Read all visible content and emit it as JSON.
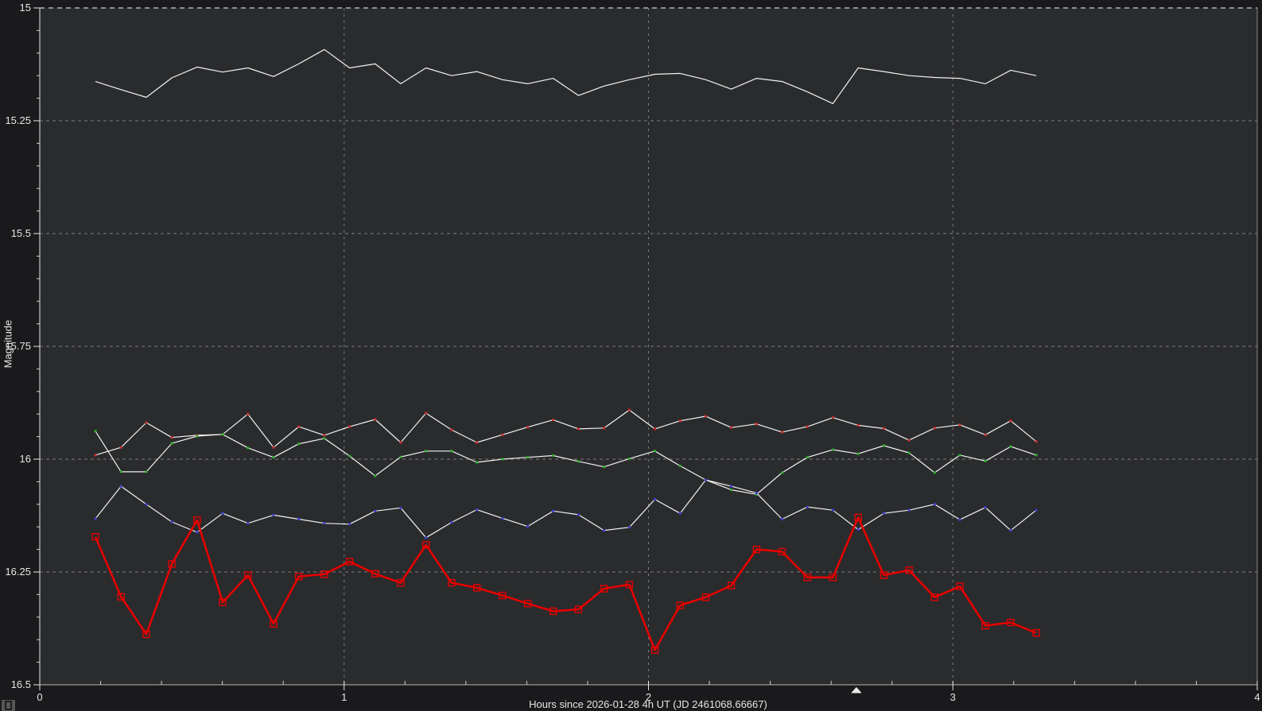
{
  "window": {
    "outer_background": "#1a1a1c",
    "plot_background": "#2a2b2d",
    "axis_text_color": "#e6e6e6",
    "gridline_color": "#7d7d7d",
    "top_gridline_color": "#fafafa",
    "frame_left_color": "#e8e8e8",
    "frame_bottom_color": "#b5b5b5",
    "frame_right_color": "#8a8a8a"
  },
  "chart_data": {
    "type": "line",
    "title": "",
    "xlabel": "Hours since 2026-01-28 4h UT (JD 2461068.66667)",
    "ylabel": "Magnitude",
    "xlim": [
      0,
      4
    ],
    "ylim": [
      15,
      16.5
    ],
    "y_axis_inverted_magnitude_scale": true,
    "grid": "dashed",
    "legend_position": "none",
    "x_ticks": [
      {
        "v": 0,
        "label": "0"
      },
      {
        "v": 1,
        "label": "1"
      },
      {
        "v": 2,
        "label": "2"
      },
      {
        "v": 3,
        "label": "3"
      },
      {
        "v": 4,
        "label": "4"
      }
    ],
    "x_minor_tick_step": 0.2,
    "y_ticks": [
      {
        "v": 15,
        "label": "15"
      },
      {
        "v": 15.25,
        "label": "15.25"
      },
      {
        "v": 15.5,
        "label": "15.5"
      },
      {
        "v": 15.75,
        "label": "15.75"
      },
      {
        "v": 16,
        "label": "16"
      },
      {
        "v": 16.25,
        "label": "16.25"
      },
      {
        "v": 16.5,
        "label": "16.5"
      }
    ],
    "y_minor_tick_step": 0.05,
    "x": [
      0.183,
      0.267,
      0.35,
      0.434,
      0.517,
      0.601,
      0.684,
      0.768,
      0.851,
      0.935,
      1.018,
      1.102,
      1.186,
      1.269,
      1.353,
      1.436,
      1.52,
      1.603,
      1.687,
      1.77,
      1.854,
      1.937,
      2.021,
      2.104,
      2.188,
      2.272,
      2.355,
      2.439,
      2.522,
      2.606,
      2.689,
      2.773,
      2.856,
      2.94,
      3.023,
      3.107,
      3.19,
      3.274
    ],
    "series": [
      {
        "name": "white-line-1",
        "line_color": "#f2f2f2",
        "line_width": 1.2,
        "marker": "none",
        "marker_color": null,
        "values": [
          15.163,
          15.181,
          15.198,
          15.155,
          15.131,
          15.142,
          15.133,
          15.152,
          15.124,
          15.092,
          15.133,
          15.124,
          15.168,
          15.133,
          15.15,
          15.141,
          15.159,
          15.168,
          15.156,
          15.194,
          15.173,
          15.159,
          15.147,
          15.145,
          15.159,
          15.18,
          15.156,
          15.163,
          15.186,
          15.212,
          15.133,
          15.141,
          15.15,
          15.154,
          15.156,
          15.168,
          15.138,
          15.15
        ]
      },
      {
        "name": "white-line-2",
        "line_color": "#f2f2f2",
        "line_width": 1.2,
        "marker": "dot",
        "marker_color": "#d03030",
        "values": [
          15.991,
          15.974,
          15.919,
          15.952,
          15.947,
          15.945,
          15.9,
          15.974,
          15.928,
          15.947,
          15.928,
          15.912,
          15.963,
          15.898,
          15.935,
          15.963,
          15.946,
          15.929,
          15.913,
          15.933,
          15.931,
          15.891,
          15.933,
          15.915,
          15.905,
          15.93,
          15.922,
          15.94,
          15.928,
          15.908,
          15.925,
          15.932,
          15.958,
          15.931,
          15.924,
          15.946,
          15.915,
          15.961
        ]
      },
      {
        "name": "white-line-3",
        "line_color": "#f2f2f2",
        "line_width": 1.2,
        "marker": "dot",
        "marker_color": "#2fae2f",
        "values": [
          15.938,
          16.028,
          16.028,
          15.965,
          15.949,
          15.945,
          15.975,
          15.996,
          15.966,
          15.954,
          15.993,
          16.037,
          15.995,
          15.982,
          15.982,
          16.007,
          16.0,
          15.996,
          15.992,
          16.005,
          16.017,
          15.999,
          15.982,
          16.015,
          16.046,
          16.068,
          16.078,
          16.03,
          15.996,
          15.979,
          15.988,
          15.97,
          15.986,
          16.03,
          15.991,
          16.004,
          15.972,
          15.991
        ]
      },
      {
        "name": "white-line-4",
        "line_color": "#f2f2f2",
        "line_width": 1.2,
        "marker": "dot",
        "marker_color": "#4040d0",
        "values": [
          16.132,
          16.06,
          16.1,
          16.139,
          16.162,
          16.12,
          16.142,
          16.124,
          16.133,
          16.142,
          16.144,
          16.115,
          16.108,
          16.174,
          16.14,
          16.112,
          16.131,
          16.149,
          16.115,
          16.123,
          16.158,
          16.151,
          16.089,
          16.12,
          16.046,
          16.06,
          16.075,
          16.133,
          16.106,
          16.113,
          16.156,
          16.12,
          16.113,
          16.1,
          16.134,
          16.107,
          16.158,
          16.113
        ]
      },
      {
        "name": "red-line",
        "line_color": "#e60000",
        "line_width": 2.6,
        "marker": "open-square",
        "marker_color": "#e60000",
        "values": [
          16.172,
          16.305,
          16.388,
          16.232,
          16.135,
          16.317,
          16.257,
          16.365,
          16.26,
          16.255,
          16.227,
          16.254,
          16.274,
          16.19,
          16.274,
          16.285,
          16.302,
          16.32,
          16.337,
          16.333,
          16.287,
          16.278,
          16.423,
          16.324,
          16.306,
          16.28,
          16.2,
          16.205,
          16.262,
          16.262,
          16.129,
          16.257,
          16.246,
          16.306,
          16.282,
          16.369,
          16.362,
          16.385
        ]
      }
    ],
    "cursor_marker_hour": 2.683
  }
}
